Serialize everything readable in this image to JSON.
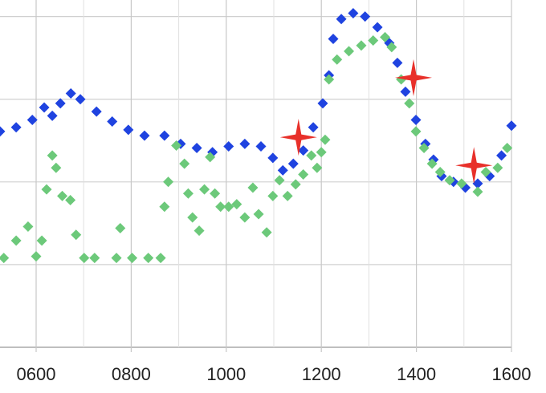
{
  "chart_data": {
    "type": "scatter",
    "xlim": [
      524,
      1600
    ],
    "ylim": [
      0,
      4.2
    ],
    "xticks": [
      {
        "value": 600,
        "label": "0600"
      },
      {
        "value": 800,
        "label": "0800"
      },
      1000,
      1200,
      1400,
      1600
    ],
    "xgrid_minor": [
      700,
      900,
      1100,
      1300,
      1500
    ],
    "ygrid": [
      0,
      1,
      2,
      3,
      4
    ],
    "grid": true,
    "series": [
      {
        "color": "#1f43e0",
        "marker": "diamond",
        "x": [
          524,
          558,
          592,
          617,
          634,
          651,
          673,
          693,
          727,
          760,
          794,
          828,
          870,
          904,
          938,
          971,
          1005,
          1039,
          1073,
          1098,
          1119,
          1141,
          1162,
          1183,
          1203,
          1216,
          1225,
          1242,
          1267,
          1292,
          1318,
          1343,
          1360,
          1377,
          1399,
          1419,
          1436,
          1453,
          1478,
          1503,
          1529,
          1554,
          1579,
          1600
        ],
        "values": [
          2.61,
          2.66,
          2.75,
          2.9,
          2.8,
          2.95,
          3.07,
          3.0,
          2.85,
          2.73,
          2.63,
          2.56,
          2.56,
          2.46,
          2.41,
          2.36,
          2.43,
          2.46,
          2.43,
          2.29,
          2.14,
          2.22,
          2.38,
          2.66,
          2.95,
          3.29,
          3.73,
          3.97,
          4.04,
          4.0,
          3.87,
          3.68,
          3.44,
          3.09,
          2.75,
          2.46,
          2.27,
          2.07,
          2.0,
          1.93,
          1.98,
          2.07,
          2.32,
          2.68
        ]
      },
      {
        "color": "#6cc97a",
        "marker": "diamond",
        "x": [
          532,
          558,
          583,
          600,
          612,
          622,
          634,
          642,
          655,
          672,
          684,
          701,
          723,
          777,
          769,
          802,
          836,
          862,
          870,
          878,
          895,
          912,
          920,
          929,
          943,
          954,
          966,
          976,
          988,
          1005,
          1022,
          1039,
          1056,
          1068,
          1085,
          1098,
          1112,
          1129,
          1146,
          1162,
          1179,
          1191,
          1200,
          1208,
          1216,
          1233,
          1258,
          1284,
          1309,
          1334,
          1348,
          1368,
          1385,
          1399,
          1416,
          1433,
          1450,
          1470,
          1495,
          1529,
          1546,
          1571,
          1591
        ],
        "values": [
          1.08,
          1.29,
          1.46,
          1.1,
          1.29,
          1.91,
          2.32,
          2.17,
          1.83,
          1.78,
          1.36,
          1.08,
          1.08,
          1.44,
          1.08,
          1.08,
          1.08,
          1.08,
          1.7,
          2.0,
          2.44,
          2.22,
          1.86,
          1.57,
          1.41,
          1.91,
          2.3,
          1.86,
          1.7,
          1.7,
          1.73,
          1.57,
          1.93,
          1.61,
          1.39,
          1.83,
          2.02,
          1.83,
          1.97,
          2.09,
          2.32,
          2.17,
          2.36,
          2.51,
          3.24,
          3.48,
          3.58,
          3.65,
          3.71,
          3.75,
          3.63,
          3.24,
          2.95,
          2.61,
          2.41,
          2.22,
          2.12,
          2.02,
          1.98,
          1.88,
          2.12,
          2.17,
          2.41
        ]
      },
      {
        "color": "#e8302a",
        "marker": "star",
        "x": [
          1152,
          1394,
          1521
        ],
        "values": [
          2.54,
          3.26,
          2.2
        ]
      }
    ]
  }
}
